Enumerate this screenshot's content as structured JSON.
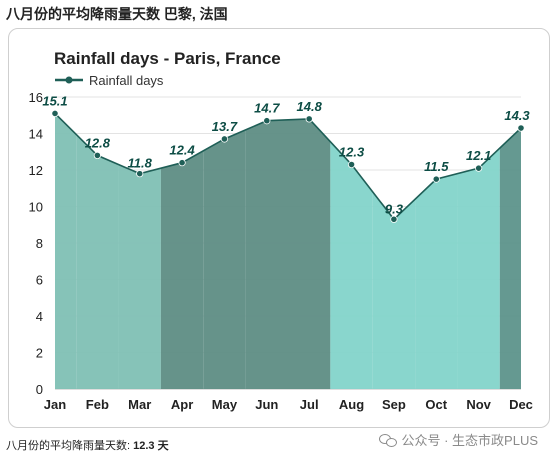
{
  "header": {
    "title": "八月份的平均降雨量天数 巴黎, 法国"
  },
  "chart_data": {
    "type": "area",
    "title": "Rainfall days - Paris, France",
    "legend": {
      "label": "Rainfall days",
      "placement": "top-left"
    },
    "categories": [
      "Jan",
      "Feb",
      "Mar",
      "Apr",
      "May",
      "Jun",
      "Jul",
      "Aug",
      "Sep",
      "Oct",
      "Nov",
      "Dec"
    ],
    "values": [
      15.1,
      12.8,
      11.8,
      12.4,
      13.7,
      14.7,
      14.8,
      12.3,
      9.3,
      11.5,
      12.1,
      14.3
    ],
    "data_labels": [
      "15.1",
      "12.8",
      "11.8",
      "12.4",
      "13.7",
      "14.7",
      "14.8",
      "12.3",
      "9.3",
      "11.5",
      "12.1",
      "14.3"
    ],
    "yticks": [
      "0",
      "2",
      "4",
      "6",
      "8",
      "10",
      "12",
      "14",
      "16"
    ],
    "ylim": [
      0,
      16
    ],
    "xlabel": "",
    "ylabel": "",
    "grid": "horizontal",
    "colors": {
      "line": "#1f5f57",
      "marker": "#1f5f57",
      "label": "#0d4d45",
      "band_winter": "#7fc0b4",
      "band_spring": "#6ba596",
      "band_summer": "#5e8d84",
      "band_autumn_early": "#83d4ca",
      "band_autumn": "#5d948b"
    },
    "month_bands": [
      "band_winter",
      "band_winter",
      "band_winter",
      "band_summer",
      "band_summer",
      "band_summer",
      "band_summer",
      "band_autumn_early",
      "band_autumn_early",
      "band_autumn_early",
      "band_autumn_early",
      "band_autumn"
    ]
  },
  "footer": {
    "label": "八月份的平均降雨量天数:",
    "value": "12.3 天"
  },
  "watermark": {
    "text": "公众号 · 生态市政PLUS"
  }
}
